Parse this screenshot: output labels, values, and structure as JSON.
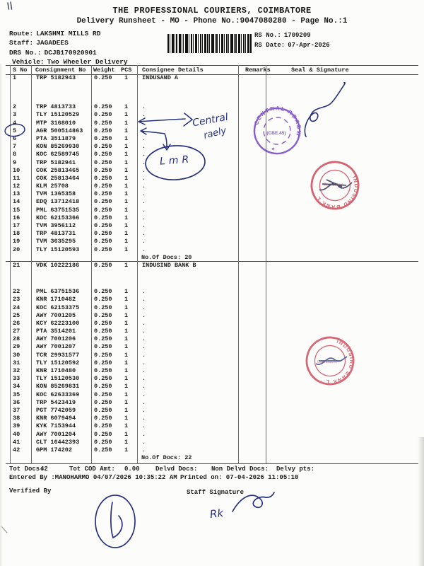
{
  "colors": {
    "ink": "#27317f",
    "stamp_purple": "#6f3cc4",
    "stamp_red": "#c93a4c",
    "text": "#1b1b1b"
  },
  "header": {
    "title": "THE PROFESSIONAL COURIERS, COIMBATORE",
    "subtitle": "Delivery Runsheet - MO - Phone No.:9047080280 - Page No.:1",
    "route_label": "Route:",
    "route_value": "LAKSHMI MILLS RD",
    "staff_label": "Staff:",
    "staff_value": "JAGADEES",
    "drs_label": "DRS No.:",
    "drs_value": "DCJB170920901",
    "vehicle_label": "Vehicle:",
    "vehicle_value": "Two Wheeler Delivery",
    "rs_no_label": "RS No.:",
    "rs_no_value": "1709209",
    "rs_date_label": "RS Date:",
    "rs_date_value": "07-Apr-2026"
  },
  "table": {
    "columns": {
      "sno": "S No",
      "consignment": "Consignment No",
      "weight": "Weight",
      "pcs": "PCS",
      "consignee": "Consignee Details",
      "remarks": "Remarks",
      "seal": "Seal & Signature"
    },
    "groups": [
      {
        "docs_note": "No.Of Docs: 20",
        "rows": [
          [
            "1",
            "TRP 5182943",
            "0.250",
            "1",
            "INDUSAND A"
          ],
          [
            "2",
            "TRP 4813733",
            "0.250",
            "1",
            "."
          ],
          [
            "3",
            "TLY 15120529",
            "0.250",
            "1",
            "."
          ],
          [
            "4",
            "MTP 3168010",
            "0.250",
            "1",
            "."
          ],
          [
            "5",
            "AGR 500514863",
            "0.250",
            "1",
            "."
          ],
          [
            "6",
            "PTA 3511879",
            "0.250",
            "1",
            "."
          ],
          [
            "7",
            "KON 85269930",
            "0.250",
            "1",
            "."
          ],
          [
            "8",
            "KOC 62589745",
            "0.250",
            "1",
            "."
          ],
          [
            "9",
            "TRP 5182941",
            "0.250",
            "1",
            "."
          ],
          [
            "10",
            "COK 25813465",
            "0.250",
            "1",
            "."
          ],
          [
            "11",
            "COK 25813464",
            "0.250",
            "1",
            "."
          ],
          [
            "12",
            "KLM 25708",
            "0.250",
            "1",
            "."
          ],
          [
            "13",
            "TVM 1365358",
            "0.250",
            "1",
            "."
          ],
          [
            "14",
            "EDQ 13712418",
            "0.250",
            "1",
            "."
          ],
          [
            "15",
            "PML 63751535",
            "0.250",
            "1",
            "."
          ],
          [
            "16",
            "KOC 62153366",
            "0.250",
            "1",
            "."
          ],
          [
            "17",
            "TVM 3956112",
            "0.250",
            "1",
            "."
          ],
          [
            "18",
            "TRP 4813731",
            "0.250",
            "1",
            "."
          ],
          [
            "19",
            "TVM 3635295",
            "0.250",
            "1",
            "."
          ],
          [
            "20",
            "TLY 15120593",
            "0.250",
            "1",
            "."
          ]
        ]
      },
      {
        "docs_note": "No.Of Docs: 22",
        "rows": [
          [
            "21",
            "VDK 10222186",
            "0.250",
            "1",
            "INDUSIND BANK B"
          ],
          [
            "22",
            "PML 63751536",
            "0.250",
            "1",
            "."
          ],
          [
            "23",
            "KNR 1710482",
            "0.250",
            "1",
            "."
          ],
          [
            "24",
            "KOC 62153375",
            "0.250",
            "1",
            "."
          ],
          [
            "25",
            "AWY 7001205",
            "0.250",
            "1",
            "."
          ],
          [
            "26",
            "KCY 62223100",
            "0.250",
            "1",
            "."
          ],
          [
            "27",
            "PTA 3514201",
            "0.250",
            "1",
            "."
          ],
          [
            "28",
            "AWY 7001206",
            "0.250",
            "1",
            "."
          ],
          [
            "29",
            "AWY 7001207",
            "0.250",
            "1",
            "."
          ],
          [
            "30",
            "TCR 29931577",
            "0.250",
            "1",
            "."
          ],
          [
            "31",
            "TLY 15120592",
            "0.250",
            "1",
            "."
          ],
          [
            "32",
            "KNR 1710480",
            "0.250",
            "1",
            "."
          ],
          [
            "33",
            "TLY 15120530",
            "0.250",
            "1",
            "."
          ],
          [
            "34",
            "KON 85269831",
            "0.250",
            "1",
            "."
          ],
          [
            "35",
            "KOC 62633369",
            "0.250",
            "1",
            "."
          ],
          [
            "36",
            "TRP 5423419",
            "0.250",
            "1",
            "."
          ],
          [
            "37",
            "PGT 7742059",
            "0.250",
            "1",
            "."
          ],
          [
            "38",
            "KNR 6079494",
            "0.250",
            "1",
            "."
          ],
          [
            "39",
            "KYK 7153944",
            "0.250",
            "1",
            "."
          ],
          [
            "40",
            "AWY 7001204",
            "0.250",
            "1",
            "."
          ],
          [
            "41",
            "CLT 16442393",
            "0.250",
            "1",
            "."
          ],
          [
            "42",
            "GPM 174202",
            "0.250",
            "1",
            "."
          ]
        ]
      }
    ]
  },
  "footer": {
    "tot_docs_label": "Tot Docs:",
    "tot_docs_value": "42",
    "tot_cod_label": "Tot COD Amt:",
    "tot_cod_value": "0.00",
    "delvd_label": "Delvd Docs:",
    "non_delvd_label": "Non Delvd Docs:",
    "delvy_label": "Delvy pts:",
    "entered_by": "Entered By :MANOHARMO 04/07/2026 10:35:22 AM",
    "printed_on": "Printed on: 07-04-2026 11:05:10",
    "verified_by": "Verified By",
    "staff_signature": "Staff Signature"
  },
  "annotations": {
    "note_word1": "Central",
    "note_word2": "raely",
    "lmr_text": "LmR",
    "staff_initials": "Rk",
    "stamp_roadways": {
      "ring_text": "CENTRAL ROADWAYS",
      "center_text": "(CBE.45)",
      "bottom_glyph": "★"
    },
    "stamp_bank1": {
      "ring_text": "INDUSIND BANK LTD.",
      "inner_text": "Coimbatore"
    },
    "stamp_bank2": {
      "ring_text": "INDUSIND BANK LTD.",
      "inner_text": "Coimbatore"
    }
  }
}
